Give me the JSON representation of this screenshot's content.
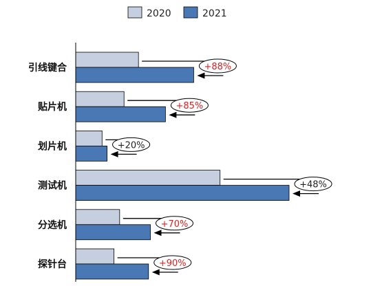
{
  "chart_data": {
    "type": "bar",
    "orientation": "horizontal",
    "categories": [
      "引线键合",
      "贴片机",
      "划片机",
      "测试机",
      "分选机",
      "探针台"
    ],
    "series": [
      {
        "name": "2020",
        "values": [
          1.0,
          0.77,
          0.42,
          2.3,
          0.7,
          0.61
        ],
        "color": "#c5cfe0"
      },
      {
        "name": "2021",
        "values": [
          1.88,
          1.43,
          0.5,
          3.4,
          1.19,
          1.16
        ],
        "color": "#4a78b5"
      }
    ],
    "annotations": [
      "+88%",
      "+85%",
      "+20%",
      "+48%",
      "+70%",
      "+90%"
    ],
    "annotation_colors": [
      "#e02020",
      "#e02020",
      "#222222",
      "#222222",
      "#e02020",
      "#e02020"
    ],
    "legend_position": "top",
    "grid": false,
    "xlim": [
      0,
      3.4
    ]
  }
}
